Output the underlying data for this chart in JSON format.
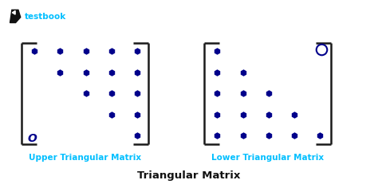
{
  "bg_color": "#ffffff",
  "dot_color": "#00008B",
  "bracket_color": "#1a1a1a",
  "label_color_cyan": "#00BFFF",
  "label_color_black": "#111111",
  "logo_color": "#00BFFF",
  "logo_icon_color": "#111111",
  "logo_text": "testbook",
  "title": "Triangular Matrix",
  "label_upper": "Upper Triangular Matrix",
  "label_lower": "Lower Triangular Matrix",
  "dot_size": 38,
  "figsize": [
    4.74,
    2.32
  ],
  "dpi": 100
}
